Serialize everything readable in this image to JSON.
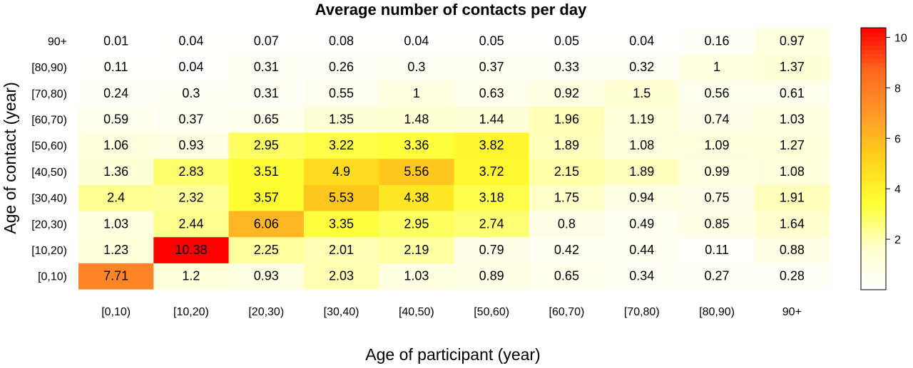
{
  "chart_data": {
    "type": "heatmap",
    "title": "Average number of contacts per day",
    "xlabel": "Age of participant (year)",
    "ylabel": "Age of contact (year)",
    "x_categories": [
      "[0,10)",
      "[10,20)",
      "[20,30)",
      "[30,40)",
      "[40,50)",
      "[50,60)",
      "[60,70)",
      "[70,80)",
      "[80,90)",
      "90+"
    ],
    "y_categories": [
      "[0,10)",
      "[10,20)",
      "[20,30)",
      "[30,40)",
      "[40,50)",
      "[50,60)",
      "[60,70)",
      "[70,80)",
      "[80,90)",
      "90+"
    ],
    "values": [
      [
        "7.71",
        "1.2",
        "0.93",
        "2.03",
        "1.03",
        "0.89",
        "0.65",
        "0.34",
        "0.27",
        "0.28"
      ],
      [
        "1.23",
        "10.38",
        "2.25",
        "2.01",
        "2.19",
        "0.79",
        "0.42",
        "0.44",
        "0.11",
        "0.88"
      ],
      [
        "1.03",
        "2.44",
        "6.06",
        "3.35",
        "2.95",
        "2.74",
        "0.8",
        "0.49",
        "0.85",
        "1.64"
      ],
      [
        "2.4",
        "2.32",
        "3.57",
        "5.53",
        "4.38",
        "3.18",
        "1.75",
        "0.94",
        "0.75",
        "1.91"
      ],
      [
        "1.36",
        "2.83",
        "3.51",
        "4.9",
        "5.56",
        "3.72",
        "2.15",
        "1.89",
        "0.99",
        "1.08"
      ],
      [
        "1.06",
        "0.93",
        "2.95",
        "3.22",
        "3.36",
        "3.82",
        "1.89",
        "1.08",
        "1.09",
        "1.27"
      ],
      [
        "0.59",
        "0.37",
        "0.65",
        "1.35",
        "1.48",
        "1.44",
        "1.96",
        "1.19",
        "0.74",
        "1.03"
      ],
      [
        "0.24",
        "0.3",
        "0.31",
        "0.55",
        "1",
        "0.63",
        "0.92",
        "1.5",
        "0.56",
        "0.61"
      ],
      [
        "0.11",
        "0.04",
        "0.31",
        "0.26",
        "0.3",
        "0.37",
        "0.33",
        "0.32",
        "1",
        "1.37"
      ],
      [
        "0.01",
        "0.04",
        "0.07",
        "0.08",
        "0.04",
        "0.05",
        "0.05",
        "0.04",
        "0.16",
        "0.97"
      ]
    ],
    "colorbar": {
      "ticks": [
        "2",
        "4",
        "6",
        "8",
        "10"
      ],
      "range": [
        0,
        10.38
      ],
      "colors": [
        "#ffffff",
        "#ffffcc",
        "#ffff33",
        "#ffd21a",
        "#ff9a2a",
        "#ff6a1f",
        "#ff0000"
      ]
    },
    "grid": false,
    "legend": "right"
  }
}
